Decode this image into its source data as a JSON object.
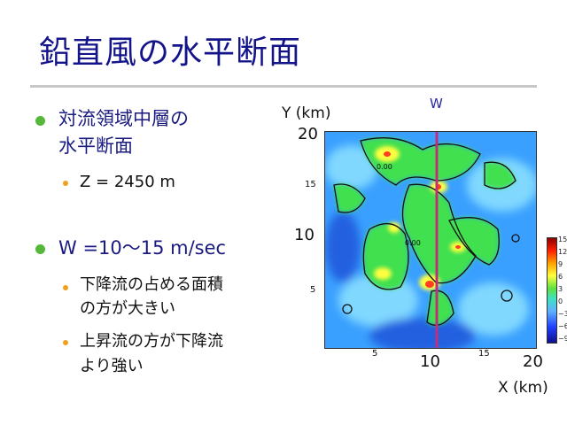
{
  "slide": {
    "title": "鉛直風の水平断面"
  },
  "bullets": [
    {
      "text_line1": "対流領域中層の",
      "text_line2": "水平断面",
      "sub": [
        {
          "lines": [
            "Z = 2450 m"
          ]
        }
      ]
    },
    {
      "text_line1": "W =10～15 m/sec",
      "sub": [
        {
          "lines": [
            "下降流の占める面積",
            "の方が大きい"
          ]
        },
        {
          "lines": [
            "上昇流の方が下降流",
            "より強い"
          ]
        }
      ]
    }
  ],
  "figure": {
    "variable_label": "W",
    "y_axis_label": "Y (km)",
    "x_axis_label": "X (km)",
    "y_ticks_large": [
      "20",
      "10"
    ],
    "y_ticks_small": [
      "15",
      "5"
    ],
    "x_ticks_large": [
      "10",
      "20"
    ],
    "x_ticks_small": [
      "5",
      "15"
    ],
    "contour_label_samples": [
      "0.00",
      "0.00"
    ],
    "colorbar_ticks": [
      "15",
      "12",
      "9",
      "6",
      "3",
      "0",
      "−3",
      "−6",
      "−9"
    ],
    "colors": {
      "strong_down": "#1010a0",
      "down": "#2f7dff",
      "weak_down": "#7fd0ff",
      "neutral": "#3fe0c8",
      "up": "#4fe040",
      "strong_up": "#ffff40",
      "max_up": "#ff4020",
      "section_line": "#c0307a"
    }
  }
}
